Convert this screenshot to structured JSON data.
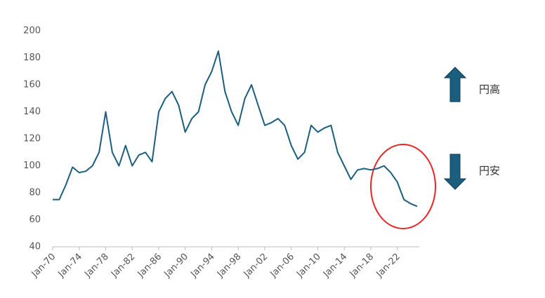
{
  "chart_data": {
    "type": "line",
    "categories": [
      "Jan-70",
      null,
      null,
      null,
      "Jan-74",
      null,
      null,
      null,
      "Jan-78",
      null,
      null,
      null,
      "Jan-82",
      null,
      null,
      null,
      "Jan-86",
      null,
      null,
      null,
      "Jan-90",
      null,
      null,
      null,
      "Jan-94",
      null,
      null,
      null,
      "Jan-98",
      null,
      null,
      null,
      "Jan-02",
      null,
      null,
      null,
      "Jan-06",
      null,
      null,
      null,
      "Jan-10",
      null,
      null,
      null,
      "Jan-14",
      null,
      null,
      null,
      "Jan-18",
      null,
      null,
      null,
      "Jan-22",
      null,
      null,
      null
    ],
    "series": [
      {
        "color": "#1b5e7e",
        "values": [
          75,
          75,
          86,
          99,
          95,
          96,
          100,
          110,
          140,
          110,
          100,
          115,
          100,
          108,
          110,
          103,
          140,
          150,
          155,
          145,
          125,
          135,
          140,
          160,
          170,
          185,
          155,
          140,
          130,
          150,
          160,
          145,
          130,
          132,
          135,
          130,
          115,
          105,
          110,
          130,
          125,
          128,
          130,
          110,
          100,
          90,
          97,
          98,
          97,
          98,
          100,
          95,
          88,
          75,
          72,
          70
        ]
      }
    ],
    "ylim": [
      40,
      200
    ],
    "yticks": [
      40,
      60,
      80,
      100,
      120,
      140,
      160,
      180,
      200
    ],
    "grid": false,
    "annotations": [
      "円高",
      "円安"
    ]
  }
}
